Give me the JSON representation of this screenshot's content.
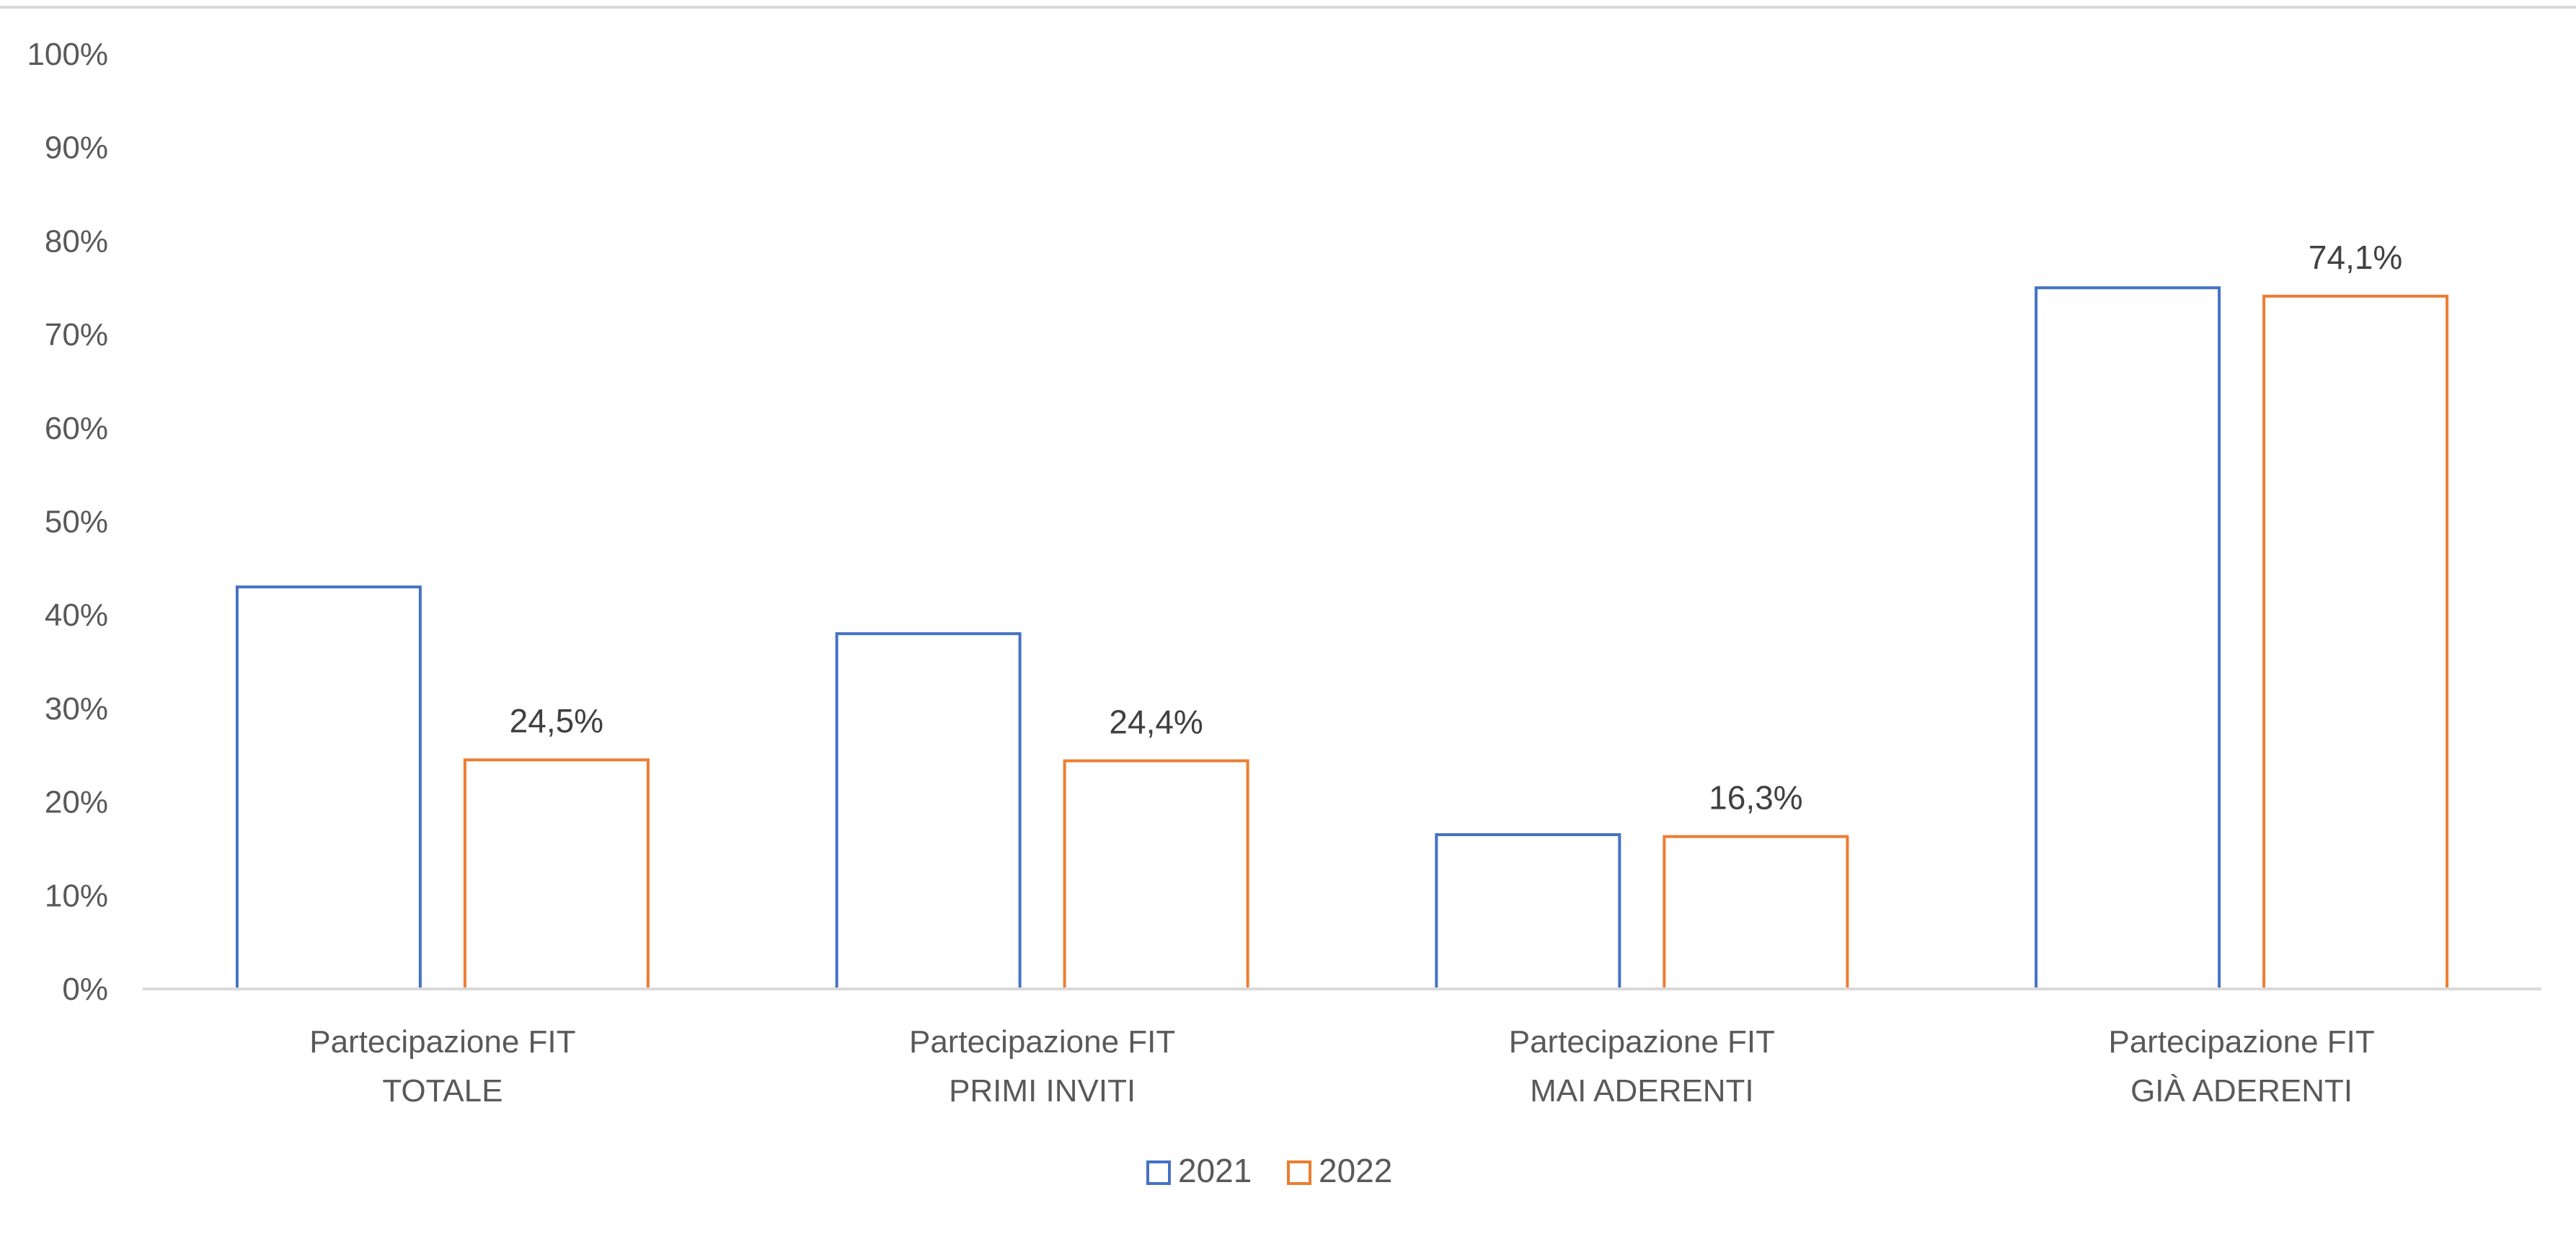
{
  "chart_data": {
    "type": "bar",
    "title": "",
    "xlabel": "",
    "ylabel": "",
    "ylim": [
      0,
      100
    ],
    "y_ticks": [
      "0%",
      "10%",
      "20%",
      "30%",
      "40%",
      "50%",
      "60%",
      "70%",
      "80%",
      "90%",
      "100%"
    ],
    "categories": [
      [
        "Partecipazione FIT",
        "TOTALE"
      ],
      [
        "Partecipazione FIT",
        "PRIMI INVITI"
      ],
      [
        "Partecipazione FIT",
        "MAI ADERENTI"
      ],
      [
        "Partecipazione FIT",
        "GIÀ ADERENTI"
      ]
    ],
    "series": [
      {
        "name": "2021",
        "color": "#4472C4",
        "values": [
          43,
          38,
          16.5,
          75
        ],
        "data_labels": [
          null,
          null,
          null,
          null
        ]
      },
      {
        "name": "2022",
        "color": "#ED7D31",
        "values": [
          24.5,
          24.4,
          16.3,
          74.1
        ],
        "data_labels": [
          "24,5%",
          "24,4%",
          "16,3%",
          "74,1%"
        ]
      }
    ],
    "grid": false,
    "legend_position": "bottom",
    "bar_fill": "none"
  }
}
